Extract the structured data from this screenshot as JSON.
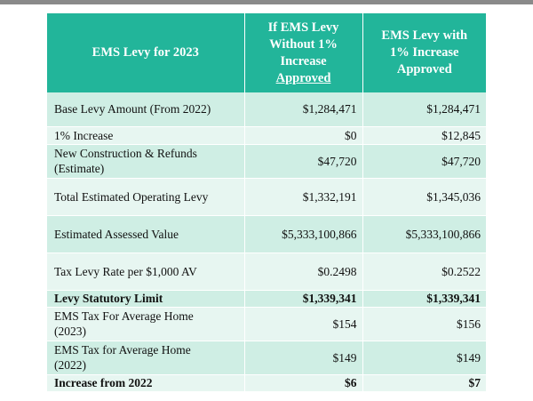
{
  "table": {
    "header": {
      "col0": "EMS Levy for 2023",
      "col1": [
        "If EMS Levy",
        "Without 1%",
        "Increase",
        "Approved"
      ],
      "col2": [
        "EMS Levy with",
        "1% Increase",
        "Approved"
      ]
    },
    "rows": [
      {
        "label": [
          "Base Levy Amount (From 2022)"
        ],
        "without": "$1,284,471",
        "with": "$1,284,471",
        "bold": false,
        "height": 38
      },
      {
        "label": [
          "1%  Increase"
        ],
        "without": "$0",
        "with": "$12,845",
        "bold": false,
        "height": 20
      },
      {
        "label": [
          "New Construction & Refunds",
          "(Estimate)"
        ],
        "without": "$47,720",
        "with": "$47,720",
        "bold": false,
        "height": 38
      },
      {
        "label": [
          "Total Estimated Operating Levy"
        ],
        "without": "$1,332,191",
        "with": "$1,345,036",
        "bold": false,
        "height": 42
      },
      {
        "label": [
          "Estimated Assessed Value"
        ],
        "without": "$5,333,100,866",
        "with": "$5,333,100,866",
        "bold": false,
        "height": 42
      },
      {
        "label": [
          "Tax Levy Rate per $1,000 AV"
        ],
        "without": "$0.2498",
        "with": "$0.2522",
        "bold": false,
        "height": 42
      },
      {
        "label": [
          "Levy Statutory Limit"
        ],
        "without": "$1,339,341",
        "with": "$1,339,341",
        "bold": true,
        "height": 19
      },
      {
        "label": [
          "EMS Tax For Average Home",
          "(2023)"
        ],
        "without": "$154",
        "with": "$156",
        "bold": false,
        "height": 38
      },
      {
        "label": [
          "EMS Tax for Average Home",
          "(2022)"
        ],
        "without": "$149",
        "with": "$149",
        "bold": false,
        "height": 38
      },
      {
        "label": [
          "Increase from 2022"
        ],
        "without": "$6",
        "with": "$7",
        "bold": true,
        "height": 19
      }
    ]
  }
}
